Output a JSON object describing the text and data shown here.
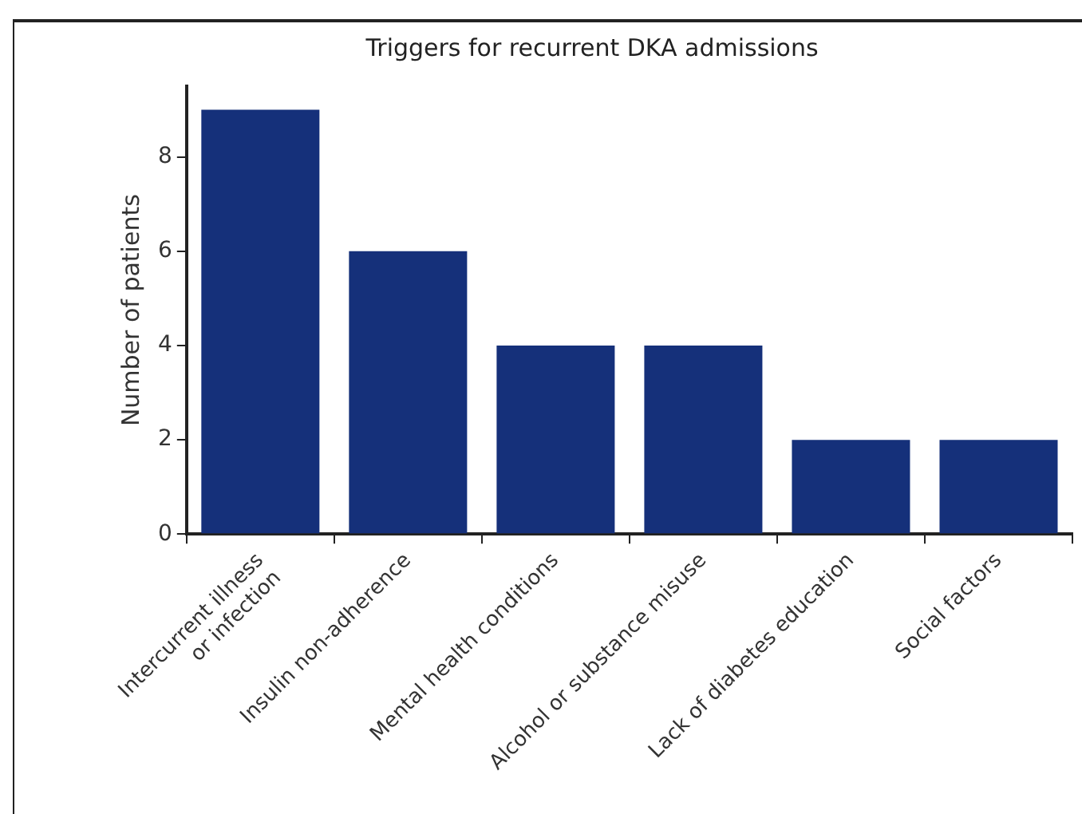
{
  "chart_data": {
    "type": "bar",
    "title": "Triggers for recurrent DKA admissions",
    "ylabel": "Number of patients",
    "categories": [
      "Intercurrent illness\nor infection",
      "Insulin non-adherence",
      "Mental health conditions",
      "Alcohol or substance misuse",
      "Lack of diabetes education",
      "Social factors"
    ],
    "values": [
      9,
      6,
      4,
      4,
      2,
      2
    ],
    "color": "#15307a",
    "ylim": [
      0,
      9.5
    ],
    "yticks": [
      0,
      2,
      4,
      6,
      8
    ],
    "grid": false,
    "legend": false
  }
}
